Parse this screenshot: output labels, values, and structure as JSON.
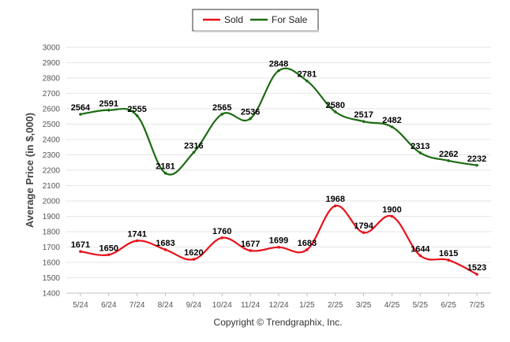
{
  "chart_data": {
    "type": "line",
    "categories": [
      "5/24",
      "6/24",
      "7/24",
      "8/24",
      "9/24",
      "10/24",
      "11/24",
      "12/24",
      "1/25",
      "2/25",
      "3/25",
      "4/25",
      "5/25",
      "6/25",
      "7/25"
    ],
    "series": [
      {
        "name": "Sold",
        "color": "#e8111a",
        "values": [
          1671,
          1650,
          1741,
          1683,
          1620,
          1760,
          1677,
          1699,
          1683,
          1968,
          1794,
          1900,
          1644,
          1615,
          1523
        ]
      },
      {
        "name": "For Sale",
        "color": "#1c6b12",
        "values": [
          2564,
          2591,
          2555,
          2181,
          2316,
          2565,
          2536,
          2848,
          2781,
          2580,
          2517,
          2482,
          2313,
          2262,
          2232
        ]
      }
    ],
    "ylabel": "Average Price (in $,000)",
    "xlabel": "",
    "ylim": [
      1400,
      3000
    ],
    "yticks": [
      1400,
      1500,
      1600,
      1700,
      1800,
      1900,
      2000,
      2100,
      2200,
      2300,
      2400,
      2500,
      2600,
      2700,
      2800,
      2900,
      3000
    ],
    "grid": true,
    "legend": "top-center",
    "data_labels": true
  },
  "footer": {
    "copyright": "Copyright © Trendgraphix, Inc."
  }
}
